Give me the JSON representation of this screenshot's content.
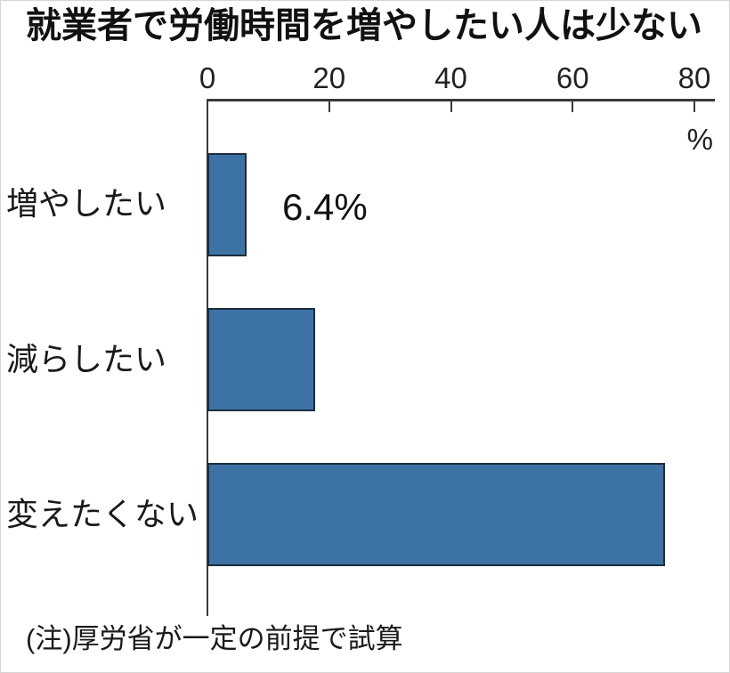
{
  "chart_data": {
    "type": "bar",
    "orientation": "horizontal",
    "title": "就業者で労働時間を増やしたい人は少ない",
    "categories": [
      "増やしたい",
      "減らしたい",
      "変えたくない"
    ],
    "values": [
      6.4,
      17.7,
      75.2
    ],
    "value_labels": [
      "6.4%",
      "",
      ""
    ],
    "xlabel": "%",
    "xlim": [
      0,
      83
    ],
    "xticks": [
      0,
      20,
      40,
      60,
      80
    ],
    "xtick_labels": [
      "0",
      "20",
      "40",
      "60",
      "80"
    ],
    "grid": false,
    "legend": "none",
    "bar_color": "#3d72a5",
    "bar_border_color": "#1d2d3c",
    "note": "(注)厚労省が一定の前提で試算"
  }
}
